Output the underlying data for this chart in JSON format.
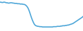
{
  "x": [
    0,
    1,
    2,
    3,
    4,
    5,
    6,
    7,
    8,
    9,
    10,
    11,
    12,
    13,
    14,
    15,
    16,
    17,
    18,
    19,
    20,
    21,
    22,
    23,
    24,
    25,
    26,
    27,
    28,
    29,
    30,
    31,
    32,
    33,
    34,
    35,
    36,
    37,
    38,
    39,
    40,
    41,
    42,
    43,
    44,
    45,
    46,
    47,
    48,
    49,
    50,
    51,
    52,
    53,
    54,
    55,
    56,
    57,
    58,
    59,
    60,
    61,
    62,
    63,
    64,
    65,
    66,
    67,
    68,
    69,
    70,
    71,
    72,
    73,
    74,
    75,
    76,
    77,
    78,
    79,
    80,
    81,
    82,
    83,
    84,
    85,
    86,
    87,
    88,
    89,
    90
  ],
  "y": [
    93,
    93,
    92,
    92,
    93,
    93,
    92,
    91,
    91,
    90,
    90,
    91,
    91,
    91,
    90,
    90,
    89,
    89,
    89,
    88,
    88,
    88,
    87,
    87,
    87,
    86,
    86,
    85,
    83,
    80,
    76,
    70,
    62,
    53,
    44,
    36,
    29,
    23,
    19,
    17,
    16,
    15,
    15,
    14,
    14,
    14,
    13,
    13,
    13,
    13,
    13,
    13,
    13,
    13,
    13,
    13,
    13,
    13,
    14,
    14,
    14,
    14,
    15,
    15,
    15,
    15,
    16,
    16,
    17,
    17,
    17,
    18,
    18,
    19,
    19,
    20,
    21,
    22,
    23,
    24,
    26,
    28,
    30,
    32,
    34,
    36,
    38,
    40,
    42,
    44,
    47
  ],
  "line_color": "#4da6d8",
  "linewidth": 1.2,
  "background_color": "#ffffff",
  "ylim": [
    0,
    100
  ],
  "xlim": [
    0,
    90
  ]
}
